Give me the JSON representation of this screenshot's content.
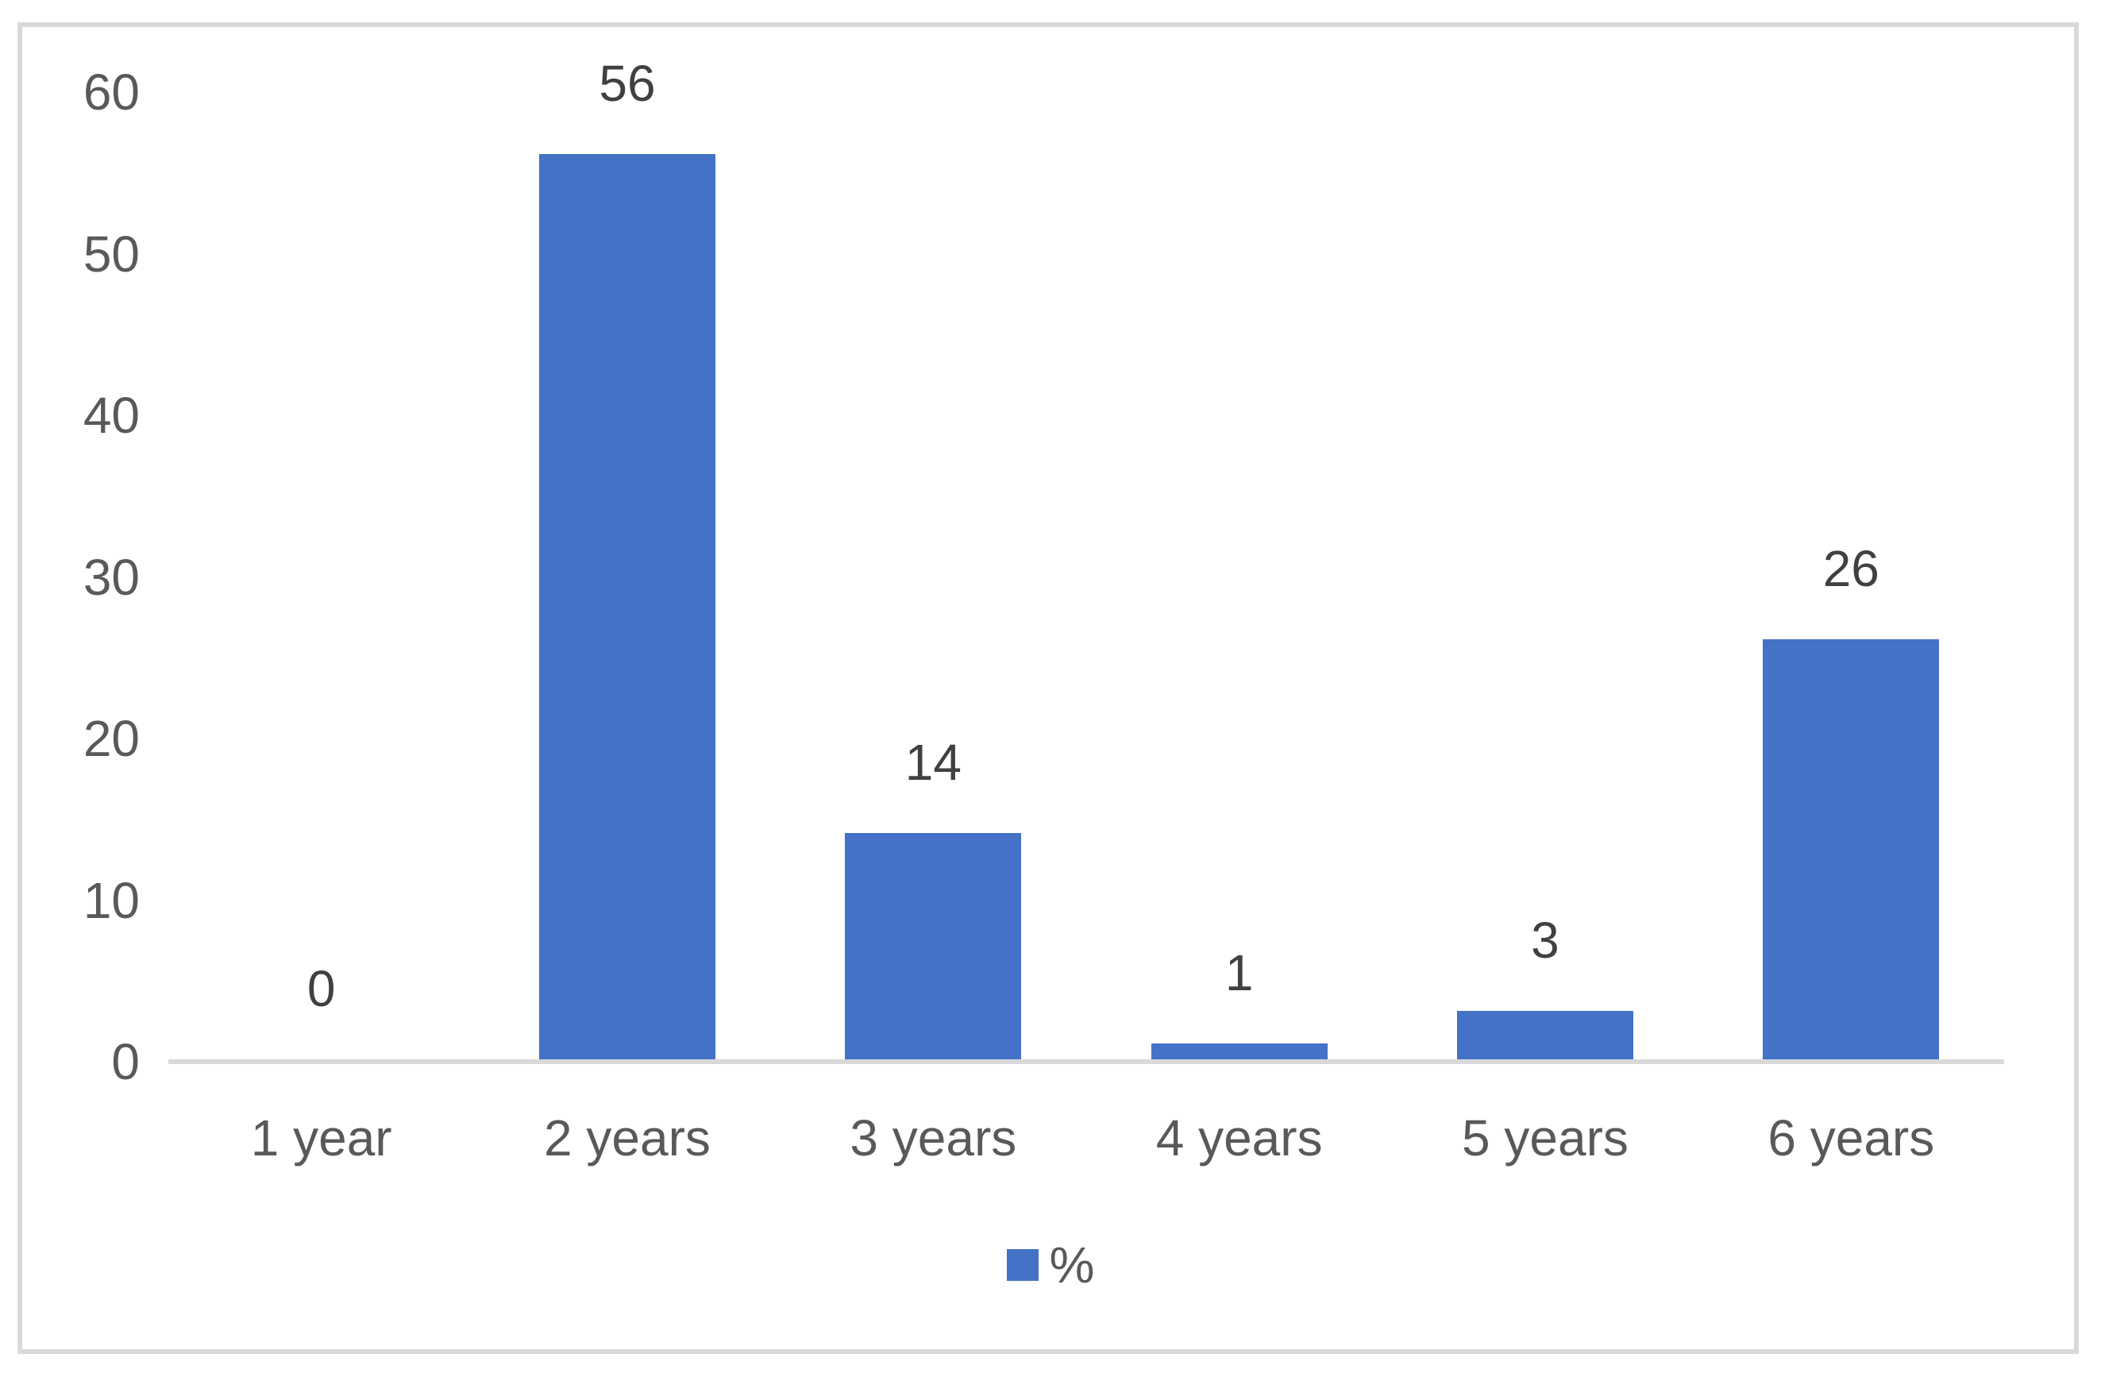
{
  "colors": {
    "bar": "#4472C6",
    "axis_line": "#D9D9D9",
    "frame_border": "#D9D9D9",
    "axis_text": "#595959",
    "value_label_text": "#404040",
    "background": "#FFFFFF"
  },
  "chart_data": {
    "type": "bar",
    "title": "",
    "xlabel": "",
    "ylabel": "",
    "categories": [
      "1 year",
      "2 years",
      "3 years",
      "4 years",
      "5 years",
      "6 years"
    ],
    "series": [
      {
        "name": "%",
        "values": [
          0,
          56,
          14,
          1,
          3,
          26
        ]
      }
    ],
    "data_labels": [
      0,
      56,
      14,
      1,
      3,
      26
    ],
    "ylim": [
      0,
      60
    ],
    "yticks": [
      0,
      10,
      20,
      30,
      40,
      50,
      60
    ],
    "grid": false,
    "legend_position": "bottom-center"
  },
  "legend": {
    "label": "%"
  }
}
